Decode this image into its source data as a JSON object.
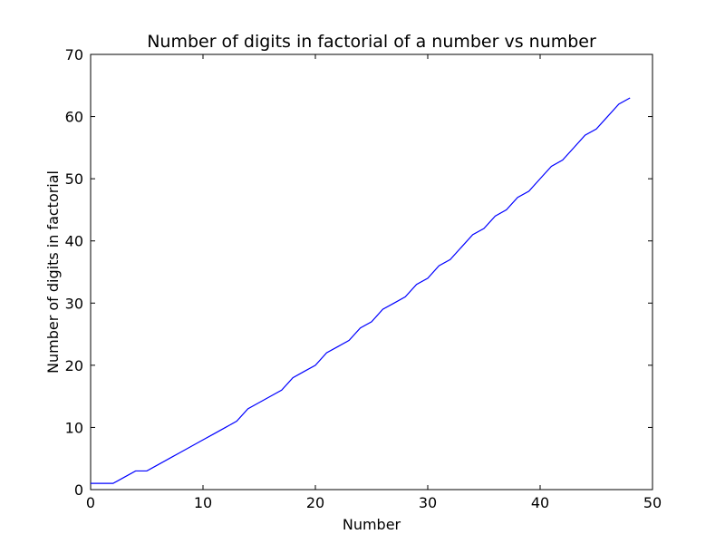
{
  "chart_data": {
    "type": "line",
    "title": "Number of digits in factorial of a number vs number",
    "xlabel": "Number",
    "ylabel": "Number of digits in factorial",
    "xlim": [
      0,
      50
    ],
    "ylim": [
      0,
      70
    ],
    "xticks": [
      0,
      10,
      20,
      30,
      40,
      50
    ],
    "yticks": [
      0,
      10,
      20,
      30,
      40,
      50,
      60,
      70
    ],
    "grid": false,
    "legend": "none",
    "series": [
      {
        "color": "#0000ff",
        "x": [
          0,
          1,
          2,
          3,
          4,
          5,
          6,
          7,
          8,
          9,
          10,
          11,
          12,
          13,
          14,
          15,
          16,
          17,
          18,
          19,
          20,
          21,
          22,
          23,
          24,
          25,
          26,
          27,
          28,
          29,
          30,
          31,
          32,
          33,
          34,
          35,
          36,
          37,
          38,
          39,
          40,
          41,
          42,
          43,
          44,
          45,
          46,
          47,
          48
        ],
        "y": [
          1,
          1,
          1,
          2,
          3,
          3,
          4,
          5,
          6,
          7,
          8,
          9,
          10,
          11,
          13,
          14,
          15,
          16,
          18,
          19,
          20,
          22,
          23,
          24,
          26,
          27,
          29,
          30,
          31,
          33,
          34,
          36,
          37,
          39,
          41,
          42,
          44,
          45,
          47,
          48,
          50,
          52,
          53,
          55,
          57,
          58,
          60,
          62,
          63
        ]
      }
    ]
  }
}
